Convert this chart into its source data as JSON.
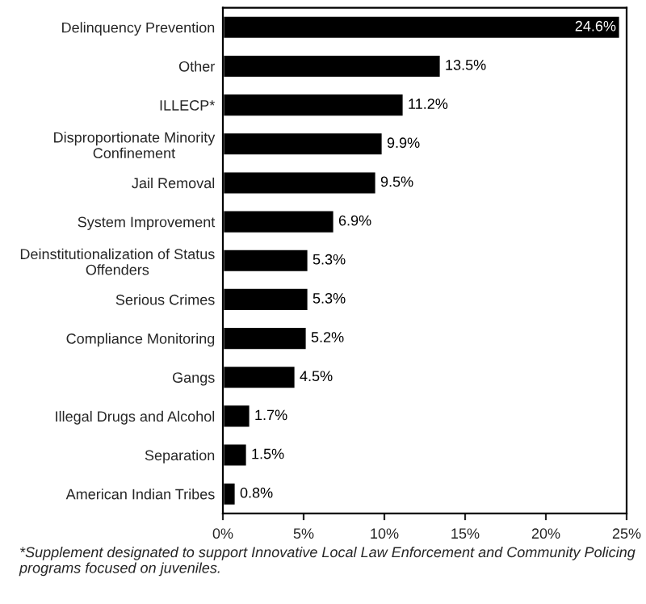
{
  "chart_data": {
    "type": "bar",
    "orientation": "horizontal",
    "categories": [
      "Delinquency Prevention",
      "Other",
      "ILLECP*",
      "Disproportionate Minority\nConfinement",
      "Jail Removal",
      "System Improvement",
      "Deinstitutionalization of Status\nOffenders",
      "Serious Crimes",
      "Compliance Monitoring",
      "Gangs",
      "Illegal Drugs and Alcohol",
      "Separation",
      "American Indian Tribes"
    ],
    "values": [
      24.6,
      13.5,
      11.2,
      9.9,
      9.5,
      6.9,
      5.3,
      5.3,
      5.2,
      4.5,
      1.7,
      1.5,
      0.8
    ],
    "value_labels": [
      "24.6%",
      "13.5%",
      "11.2%",
      "9.9%",
      "9.5%",
      "6.9%",
      "5.3%",
      "5.3%",
      "5.2%",
      "4.5%",
      "1.7%",
      "1.5%",
      "0.8%"
    ],
    "color": "#000000",
    "xlim": [
      0,
      25
    ],
    "xticks": [
      {
        "value": 0,
        "label": "0%"
      },
      {
        "value": 5,
        "label": "5%"
      },
      {
        "value": 10,
        "label": "10%"
      },
      {
        "value": 15,
        "label": "15%"
      },
      {
        "value": 20,
        "label": "20%"
      },
      {
        "value": 25,
        "label": "25%"
      }
    ],
    "grid": false,
    "legend": false,
    "annotations": [
      "*Supplement designated to support Innovative Local Law Enforcement and Community Policing programs focused on juveniles."
    ]
  }
}
